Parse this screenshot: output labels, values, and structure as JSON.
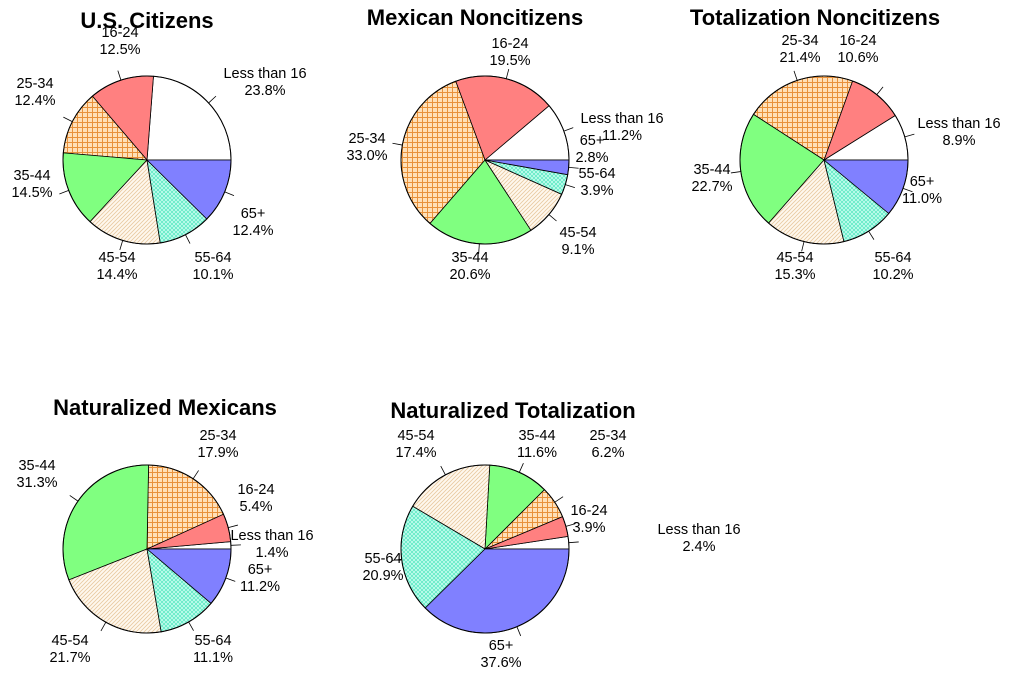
{
  "colors": {
    "Less than 16": "#ffffff",
    "16-24": "#ff8080",
    "25-34": "#f5a860",
    "35-44": "#80ff80",
    "45-54": "#fbe7cf",
    "55-64": "#80ffd8",
    "65+": "#8080ff"
  },
  "patterns": {
    "25-34": "crosshatch-orange",
    "45-54": "diagonal-tan",
    "55-64": "crosshatch-cyan"
  },
  "chart_data": [
    {
      "type": "pie",
      "title": "U.S. Citizens",
      "categories": [
        "Less than 16",
        "16-24",
        "25-34",
        "35-44",
        "45-54",
        "55-64",
        "65+"
      ],
      "values": [
        23.8,
        12.5,
        12.4,
        14.5,
        14.4,
        10.1,
        12.4
      ],
      "value_labels": [
        "23.8%",
        "12.5%",
        "12.4%",
        "14.5%",
        "14.4%",
        "10.1%",
        "12.4%"
      ]
    },
    {
      "type": "pie",
      "title": "Mexican Noncitizens",
      "categories": [
        "Less than 16",
        "16-24",
        "25-34",
        "35-44",
        "45-54",
        "55-64",
        "65+"
      ],
      "values": [
        11.2,
        19.5,
        33.0,
        20.6,
        9.1,
        3.9,
        2.8
      ],
      "value_labels": [
        "11.2%",
        "19.5%",
        "33.0%",
        "20.6%",
        "9.1%",
        "3.9%",
        "2.8%"
      ]
    },
    {
      "type": "pie",
      "title": "Totalization Noncitizens",
      "categories": [
        "Less than 16",
        "16-24",
        "25-34",
        "35-44",
        "45-54",
        "55-64",
        "65+"
      ],
      "values": [
        8.9,
        10.6,
        21.4,
        22.7,
        15.3,
        10.2,
        11.0
      ],
      "value_labels": [
        "8.9%",
        "10.6%",
        "21.4%",
        "22.7%",
        "15.3%",
        "10.2%",
        "11.0%"
      ]
    },
    {
      "type": "pie",
      "title": "Naturalized Mexicans",
      "categories": [
        "Less than 16",
        "16-24",
        "25-34",
        "35-44",
        "45-54",
        "55-64",
        "65+"
      ],
      "values": [
        1.4,
        5.4,
        17.9,
        31.3,
        21.7,
        11.1,
        11.2
      ],
      "value_labels": [
        "1.4%",
        "5.4%",
        "17.9%",
        "31.3%",
        "21.7%",
        "11.1%",
        "11.2%"
      ]
    },
    {
      "type": "pie",
      "title": "Naturalized Totalization",
      "categories": [
        "Less than 16",
        "16-24",
        "25-34",
        "35-44",
        "45-54",
        "55-64",
        "65+"
      ],
      "values": [
        2.4,
        3.9,
        6.2,
        11.6,
        17.4,
        20.9,
        37.6
      ],
      "value_labels": [
        "2.4%",
        "3.9%",
        "6.2%",
        "11.6%",
        "17.4%",
        "20.9%",
        "37.6%"
      ]
    }
  ]
}
